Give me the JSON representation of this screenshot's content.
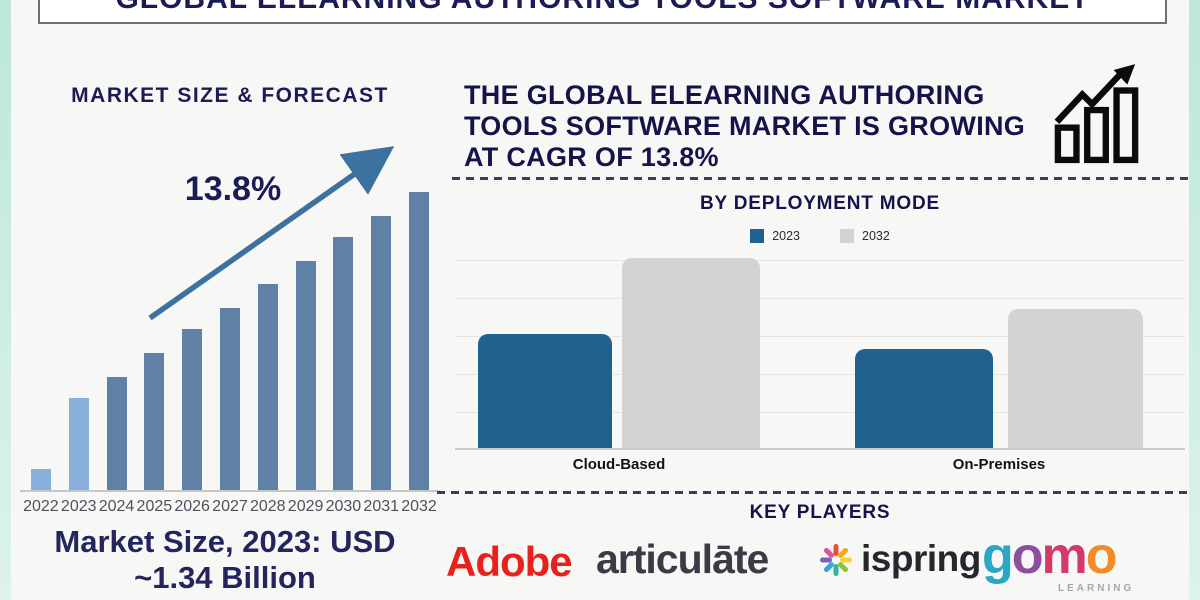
{
  "page": {
    "title": "GLOBAL ELEARNING AUTHORING TOOLS SOFTWARE MARKET",
    "accent_teal": "#BCE7DA",
    "navy": "#1B1B55",
    "background": "#F7F8F6"
  },
  "left_panel": {
    "heading": "MARKET SIZE & FORECAST",
    "cagr_annotation": "13.8%",
    "footnote_line1": "Market Size, 2023: USD",
    "footnote_line2": "~1.34 Billion"
  },
  "right_panel": {
    "headline_line1": "THE GLOBAL ELEARNING AUTHORING",
    "headline_line2": "TOOLS SOFTWARE MARKET IS GROWING",
    "headline_line3": "AT CAGR OF 13.8%",
    "deployment_heading": "BY DEPLOYMENT MODE",
    "key_players_heading": "KEY PLAYERS"
  },
  "logos": {
    "adobe": {
      "text": "Adobe",
      "color": "#E8211D"
    },
    "articulate": {
      "text": "articulāte",
      "color": "#3B3B46"
    },
    "ispring": {
      "text": "ispring",
      "color": "#26262E",
      "petal_colors": [
        "#E94F35",
        "#F5A623",
        "#F8D12E",
        "#8BC540",
        "#35B598",
        "#3BA3DC",
        "#7B61B8",
        "#E2519A"
      ]
    },
    "gomo": {
      "letters": [
        {
          "char": "g",
          "color": "#2BA6C4"
        },
        {
          "char": "o",
          "color": "#8E4E9E"
        },
        {
          "char": "m",
          "color": "#D13A6A"
        },
        {
          "char": "o",
          "color": "#F28C28"
        }
      ],
      "subtext": "LEARNING",
      "subtext_color": "#A7A7A7"
    }
  },
  "chart_data": [
    {
      "type": "bar",
      "title": "MARKET SIZE & FORECAST",
      "categories": [
        "2022",
        "2023",
        "2024",
        "2025",
        "2026",
        "2027",
        "2028",
        "2029",
        "2030",
        "2031",
        "2032"
      ],
      "values": [
        7,
        31,
        38,
        46,
        54,
        61,
        69,
        77,
        85,
        92,
        100
      ],
      "unit": "relative height, % of 2032 bar (no y-axis shown)",
      "xlabel": "",
      "ylabel": "",
      "grid": false,
      "annotation": "13.8%",
      "annotation_meaning": "CAGR trend arrow",
      "highlight_years": [
        "2022",
        "2023"
      ],
      "highlight_color": "#88AFDC",
      "bar_color": "#5E81A5",
      "trend_arrow_color": "#3C71A0",
      "footnote": "Market Size, 2023: USD ~1.34 Billion"
    },
    {
      "type": "bar",
      "title": "BY DEPLOYMENT MODE",
      "categories": [
        "Cloud-Based",
        "On-Premises"
      ],
      "series": [
        {
          "name": "2023",
          "color": "#20618F",
          "values": [
            60,
            52
          ]
        },
        {
          "name": "2032",
          "color": "#D3D3D3",
          "values": [
            100,
            73
          ]
        }
      ],
      "unit": "relative height, % of tallest bar (no y-axis shown)",
      "ylim": [
        0,
        100
      ],
      "grid": true,
      "legend_position": "top-center"
    }
  ]
}
